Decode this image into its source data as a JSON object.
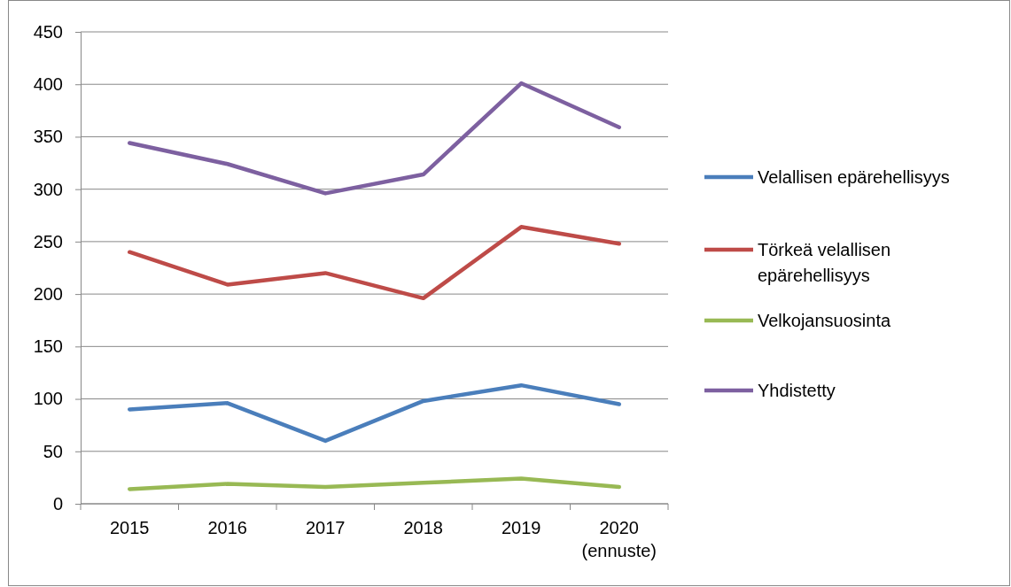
{
  "chart_data": {
    "type": "line",
    "categories": [
      "2015",
      "2016",
      "2017",
      "2018",
      "2019",
      "2020\n(ennuste)"
    ],
    "series": [
      {
        "name": "Velallisen epärehellisyys",
        "color": "#4a7ebb",
        "values": [
          90,
          96,
          60,
          98,
          113,
          95
        ]
      },
      {
        "name": "Törkeä velallisen epärehellisyys",
        "color": "#be4b48",
        "values": [
          240,
          209,
          220,
          196,
          264,
          248
        ]
      },
      {
        "name": "Velkojansuosinta",
        "color": "#98b954",
        "values": [
          14,
          19,
          16,
          20,
          24,
          16
        ]
      },
      {
        "name": "Yhdistetty",
        "color": "#7d60a0",
        "values": [
          344,
          324,
          296,
          314,
          401,
          359
        ]
      }
    ],
    "ylim": [
      0,
      450
    ],
    "yticks": [
      0,
      50,
      100,
      150,
      200,
      250,
      300,
      350,
      400,
      450
    ],
    "grid": "y",
    "legend": "right",
    "marker": "none",
    "line_style": "solid"
  }
}
